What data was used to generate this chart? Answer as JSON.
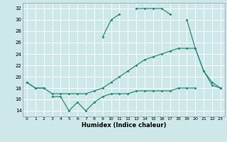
{
  "xlabel": "Humidex (Indice chaleur)",
  "line_color": "#2e8b7a",
  "bg_color": "#cce8e8",
  "grid_color": "#ffffff",
  "ylim": [
    13,
    33
  ],
  "xlim": [
    -0.5,
    23.5
  ],
  "yticks": [
    14,
    16,
    18,
    20,
    22,
    24,
    26,
    28,
    30,
    32
  ],
  "xticks": [
    0,
    1,
    2,
    3,
    4,
    5,
    6,
    7,
    8,
    9,
    10,
    11,
    12,
    13,
    14,
    15,
    16,
    17,
    18,
    19,
    20,
    21,
    22,
    23
  ],
  "top": [
    19,
    18,
    18,
    null,
    null,
    null,
    null,
    null,
    null,
    27,
    30,
    31,
    null,
    32,
    32,
    32,
    32,
    31,
    null,
    30,
    25,
    21,
    19,
    18
  ],
  "mid": [
    19,
    18,
    18,
    17,
    17,
    17,
    17,
    17,
    17.5,
    18,
    19,
    20,
    21,
    22,
    23,
    23.5,
    24,
    24.5,
    25,
    25,
    25,
    21,
    18.5,
    18
  ],
  "bot": [
    null,
    null,
    null,
    16.5,
    16.5,
    14,
    15.5,
    14,
    15.5,
    16.5,
    17,
    17,
    17,
    17.5,
    17.5,
    17.5,
    17.5,
    17.5,
    18,
    18,
    18,
    null,
    null,
    null
  ]
}
